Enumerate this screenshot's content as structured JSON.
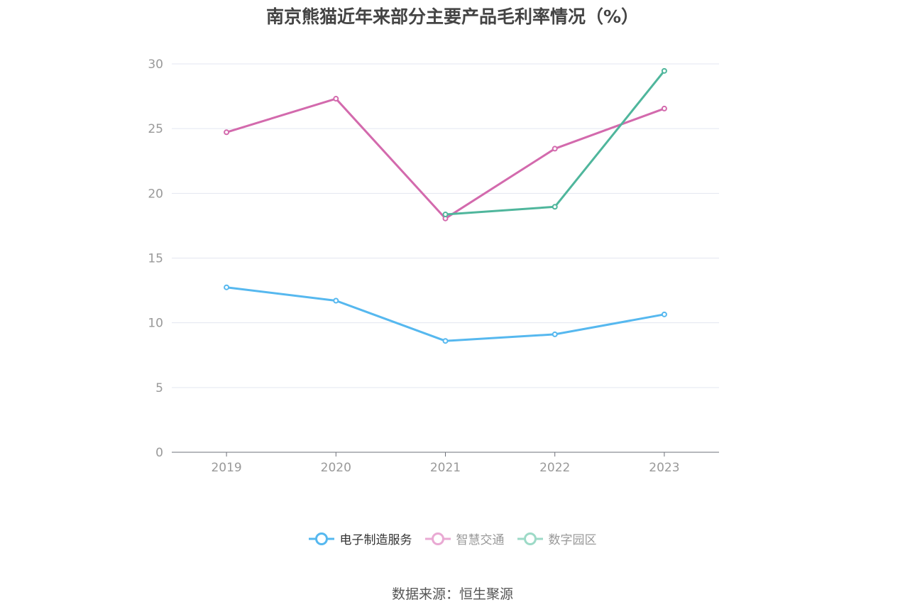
{
  "title": "南京熊猫近年来部分主要产品毛利率情况（%）",
  "source": "数据来源：恒生聚源",
  "chart_data": {
    "type": "line",
    "title": "南京熊猫近年来部分主要产品毛利率情况（%）",
    "categories": [
      "2019",
      "2020",
      "2021",
      "2022",
      "2023"
    ],
    "y_ticks": [
      "0",
      "5",
      "10",
      "15",
      "20",
      "25",
      "30"
    ],
    "ylim": [
      0,
      30
    ],
    "grid": true,
    "legend_position": "bottom",
    "series": [
      {
        "name": "电子制造服务",
        "color": "#56b8ef",
        "values": [
          12.74,
          11.71,
          8.6,
          9.11,
          10.65
        ]
      },
      {
        "name": "智慧交通",
        "color": "#d36aad",
        "values": [
          24.72,
          27.31,
          18.06,
          23.45,
          26.55
        ]
      },
      {
        "name": "数字园区",
        "color": "#4fb69c",
        "values": [
          null,
          null,
          18.37,
          18.96,
          29.46
        ]
      }
    ]
  },
  "legend": {
    "items": [
      {
        "label": "电子制造服务",
        "color": "#56b8ef",
        "state": "active"
      },
      {
        "label": "智慧交通",
        "color": "#e9a9d3",
        "state": "inactive"
      },
      {
        "label": "数字园区",
        "color": "#9ddac7",
        "state": "inactive"
      }
    ]
  }
}
